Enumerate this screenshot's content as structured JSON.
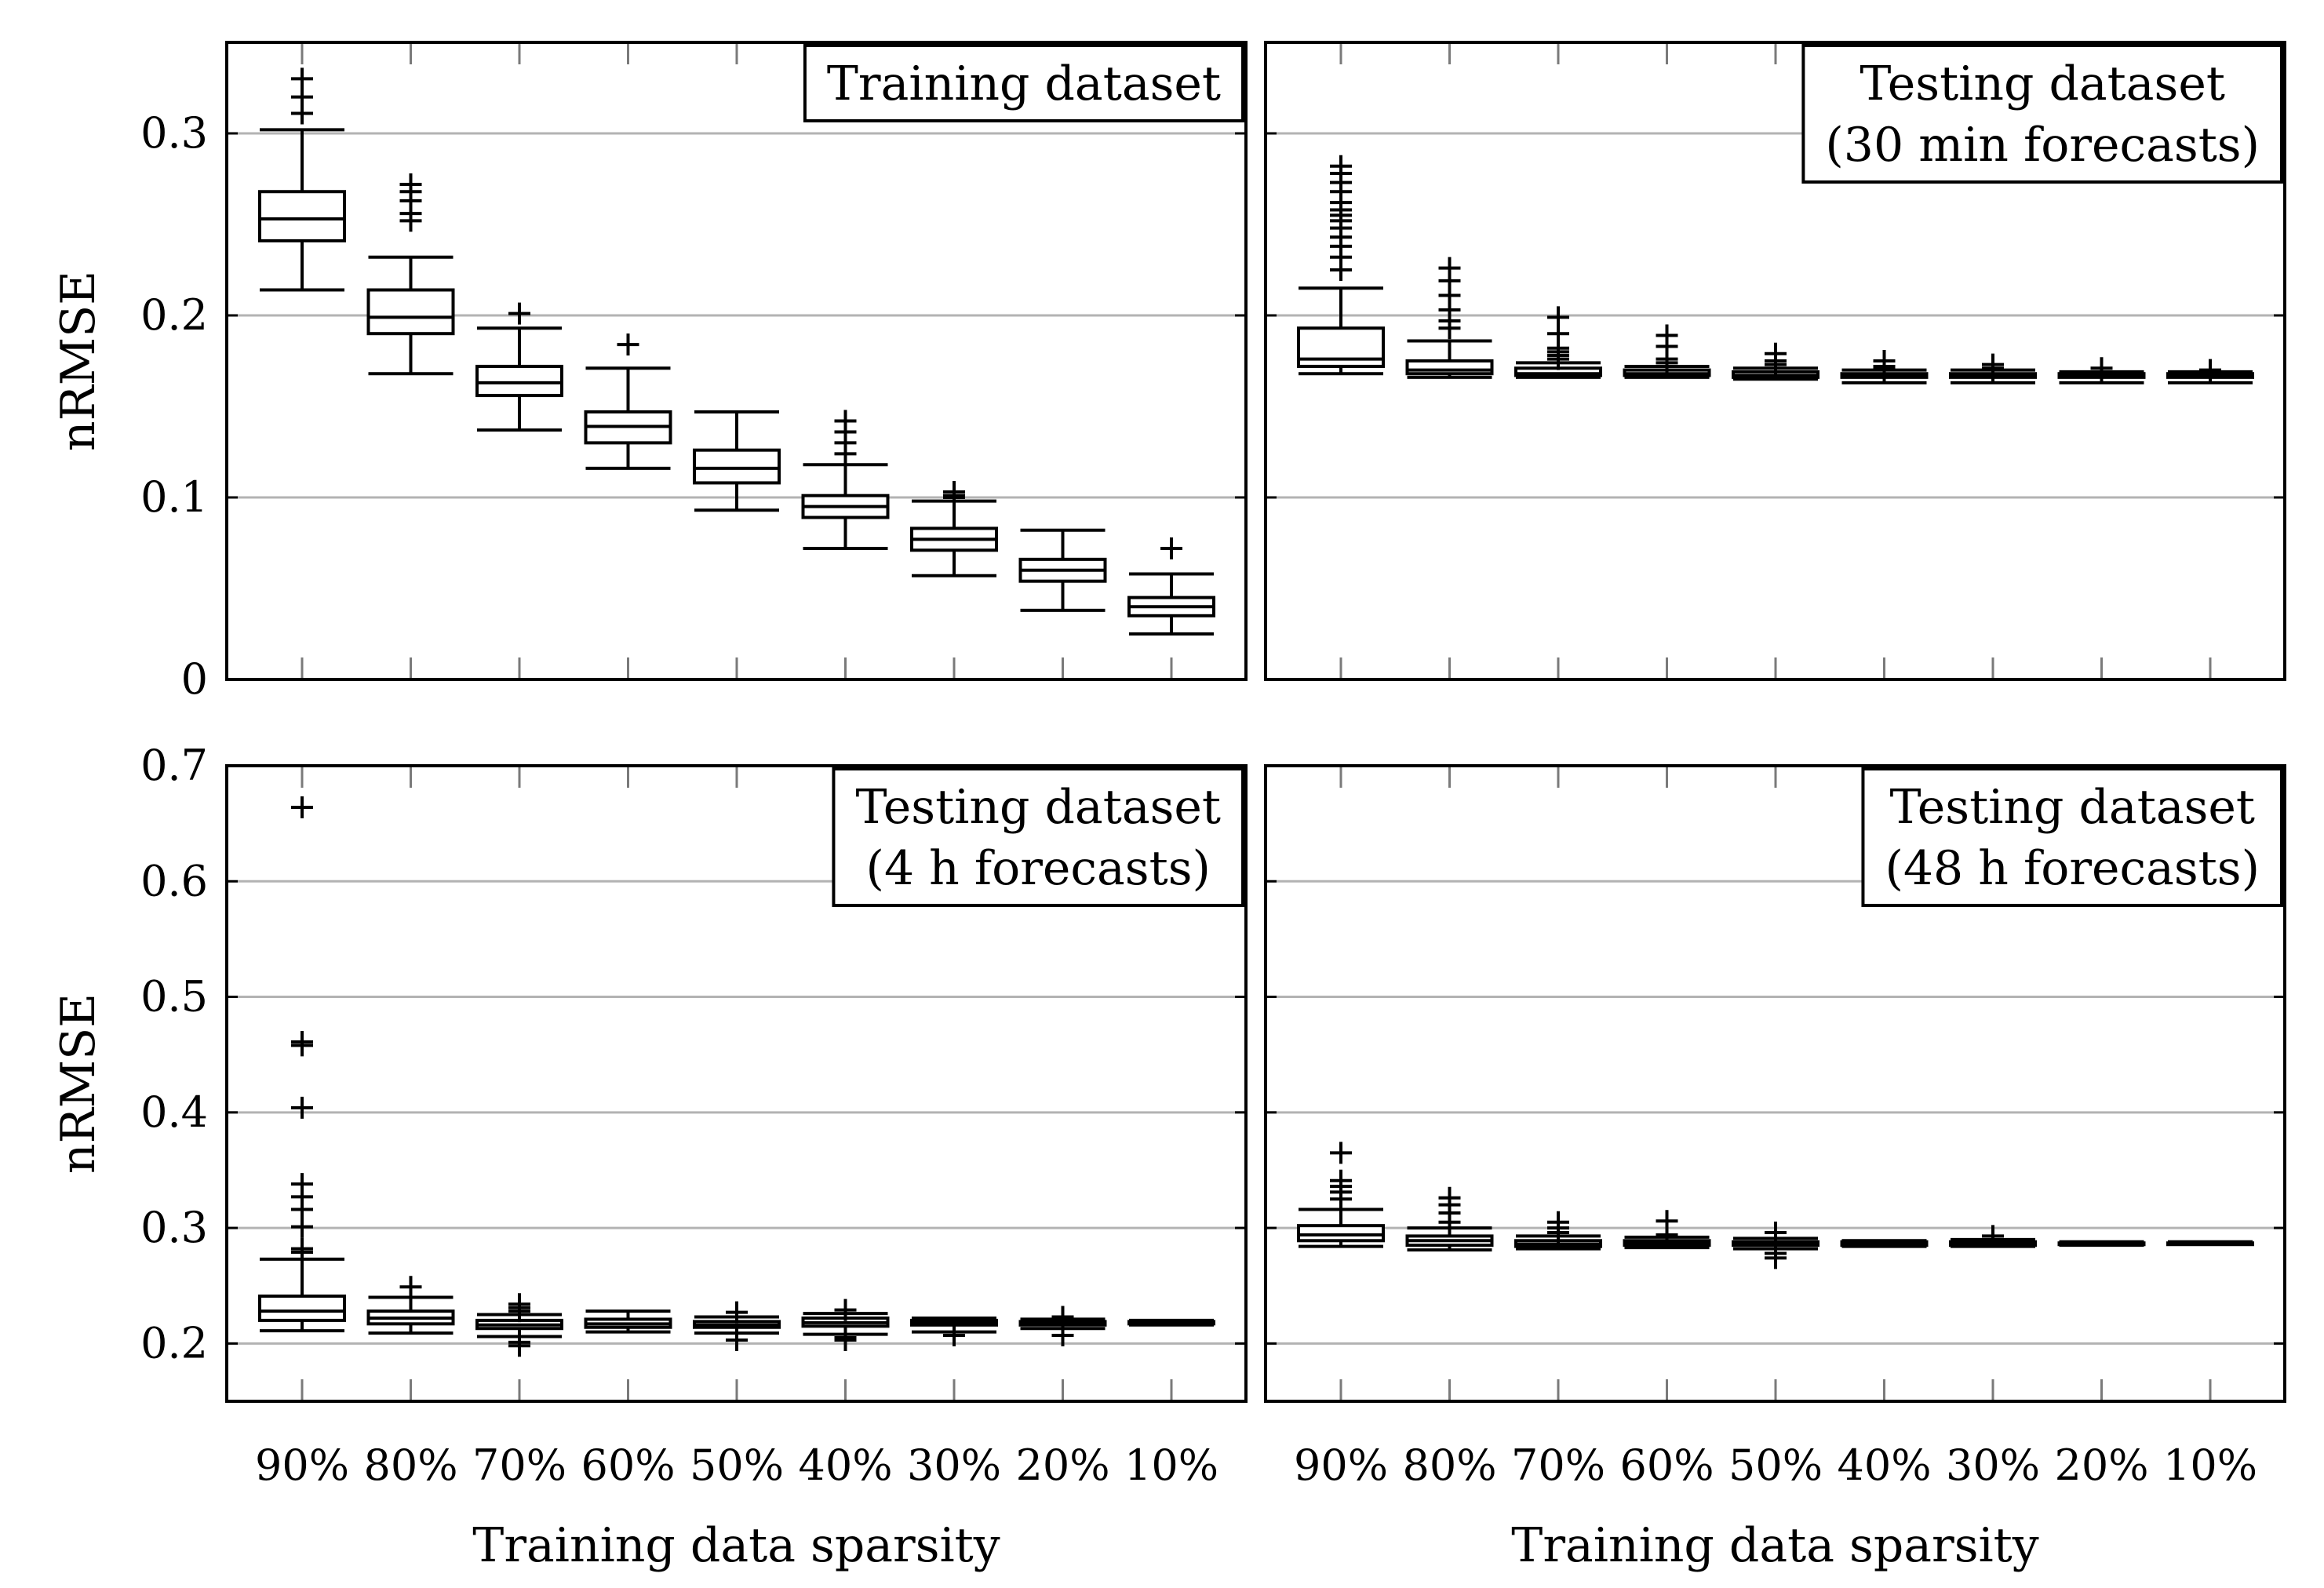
{
  "chart_data": [
    {
      "type": "boxplot",
      "panel": "top-left",
      "title": "Training dataset",
      "title_lines": [
        "Training dataset"
      ],
      "title_position": "top-right",
      "ylabel": "nRMSE",
      "xlabel": "",
      "ylim": [
        0,
        0.35
      ],
      "yticks": [
        0,
        0.1,
        0.2,
        0.3
      ],
      "ytick_labels": [
        "0",
        "0.1",
        "0.2",
        "0.3"
      ],
      "grid": true,
      "categories": [
        "90%",
        "80%",
        "70%",
        "60%",
        "50%",
        "40%",
        "30%",
        "20%",
        "10%"
      ],
      "boxes": [
        {
          "whislo": 0.214,
          "q1": 0.241,
          "med": 0.253,
          "q3": 0.268,
          "whishi": 0.302,
          "fliers": [
            0.311,
            0.32,
            0.33
          ]
        },
        {
          "whislo": 0.168,
          "q1": 0.19,
          "med": 0.199,
          "q3": 0.214,
          "whishi": 0.232,
          "fliers": [
            0.252,
            0.256,
            0.263,
            0.268,
            0.272
          ]
        },
        {
          "whislo": 0.137,
          "q1": 0.156,
          "med": 0.163,
          "q3": 0.172,
          "whishi": 0.193,
          "fliers": [
            0.201
          ]
        },
        {
          "whislo": 0.116,
          "q1": 0.13,
          "med": 0.139,
          "q3": 0.147,
          "whishi": 0.171,
          "fliers": [
            0.184
          ]
        },
        {
          "whislo": 0.093,
          "q1": 0.108,
          "med": 0.116,
          "q3": 0.126,
          "whishi": 0.147,
          "fliers": []
        },
        {
          "whislo": 0.072,
          "q1": 0.089,
          "med": 0.095,
          "q3": 0.101,
          "whishi": 0.118,
          "fliers": [
            0.124,
            0.13,
            0.136,
            0.142
          ]
        },
        {
          "whislo": 0.057,
          "q1": 0.071,
          "med": 0.077,
          "q3": 0.083,
          "whishi": 0.098,
          "fliers": [
            0.1,
            0.101,
            0.103
          ]
        },
        {
          "whislo": 0.038,
          "q1": 0.054,
          "med": 0.06,
          "q3": 0.066,
          "whishi": 0.082,
          "fliers": []
        },
        {
          "whislo": 0.025,
          "q1": 0.035,
          "med": 0.04,
          "q3": 0.045,
          "whishi": 0.058,
          "fliers": [
            0.072
          ]
        }
      ]
    },
    {
      "type": "boxplot",
      "panel": "top-right",
      "title": "Testing dataset (30 min forecasts)",
      "title_lines": [
        "Testing dataset",
        "(30 min forecasts)"
      ],
      "title_position": "top-right",
      "ylabel": "",
      "xlabel": "",
      "ylim": [
        0,
        0.35
      ],
      "yticks": [
        0,
        0.1,
        0.2,
        0.3
      ],
      "ytick_labels": [],
      "grid": true,
      "categories": [
        "90%",
        "80%",
        "70%",
        "60%",
        "50%",
        "40%",
        "30%",
        "20%",
        "10%"
      ],
      "boxes": [
        {
          "whislo": 0.168,
          "q1": 0.172,
          "med": 0.176,
          "q3": 0.193,
          "whishi": 0.215,
          "fliers": [
            0.225,
            0.232,
            0.238,
            0.243,
            0.248,
            0.252,
            0.255,
            0.258,
            0.262,
            0.268,
            0.273,
            0.278,
            0.282
          ]
        },
        {
          "whislo": 0.166,
          "q1": 0.168,
          "med": 0.17,
          "q3": 0.175,
          "whishi": 0.186,
          "fliers": [
            0.193,
            0.197,
            0.203,
            0.211,
            0.219,
            0.226
          ]
        },
        {
          "whislo": 0.166,
          "q1": 0.167,
          "med": 0.168,
          "q3": 0.171,
          "whishi": 0.174,
          "fliers": [
            0.176,
            0.178,
            0.18,
            0.182,
            0.19,
            0.199
          ]
        },
        {
          "whislo": 0.166,
          "q1": 0.167,
          "med": 0.168,
          "q3": 0.17,
          "whishi": 0.172,
          "fliers": [
            0.174,
            0.176,
            0.183,
            0.189
          ]
        },
        {
          "whislo": 0.165,
          "q1": 0.166,
          "med": 0.167,
          "q3": 0.169,
          "whishi": 0.171,
          "fliers": [
            0.173,
            0.175,
            0.179
          ]
        },
        {
          "whislo": 0.163,
          "q1": 0.166,
          "med": 0.167,
          "q3": 0.168,
          "whishi": 0.17,
          "fliers": [
            0.171,
            0.172,
            0.175
          ]
        },
        {
          "whislo": 0.163,
          "q1": 0.166,
          "med": 0.167,
          "q3": 0.168,
          "whishi": 0.17,
          "fliers": [
            0.171,
            0.173
          ]
        },
        {
          "whislo": 0.163,
          "q1": 0.166,
          "med": 0.167,
          "q3": 0.168,
          "whishi": 0.169,
          "fliers": [
            0.171
          ]
        },
        {
          "whislo": 0.163,
          "q1": 0.166,
          "med": 0.167,
          "q3": 0.168,
          "whishi": 0.169,
          "fliers": [
            0.17
          ]
        }
      ]
    },
    {
      "type": "boxplot",
      "panel": "bottom-left",
      "title": "Testing dataset (4 h forecasts)",
      "title_lines": [
        "Testing dataset",
        "(4 h forecasts)"
      ],
      "title_position": "top-right",
      "ylabel": "nRMSE",
      "xlabel": "Training data sparsity",
      "ylim": [
        0.15,
        0.7
      ],
      "yticks": [
        0.2,
        0.3,
        0.4,
        0.5,
        0.6,
        0.7
      ],
      "ytick_labels": [
        "0.2",
        "0.3",
        "0.4",
        "0.5",
        "0.6",
        "0.7"
      ],
      "grid": true,
      "categories": [
        "90%",
        "80%",
        "70%",
        "60%",
        "50%",
        "40%",
        "30%",
        "20%",
        "10%"
      ],
      "boxes": [
        {
          "whislo": 0.211,
          "q1": 0.22,
          "med": 0.228,
          "q3": 0.241,
          "whishi": 0.273,
          "fliers": [
            0.279,
            0.282,
            0.301,
            0.316,
            0.327,
            0.338,
            0.404,
            0.458,
            0.461,
            0.664
          ]
        },
        {
          "whislo": 0.209,
          "q1": 0.217,
          "med": 0.222,
          "q3": 0.228,
          "whishi": 0.24,
          "fliers": [
            0.249
          ]
        },
        {
          "whislo": 0.206,
          "q1": 0.213,
          "med": 0.216,
          "q3": 0.22,
          "whishi": 0.225,
          "fliers": [
            0.198,
            0.201,
            0.228,
            0.231,
            0.234
          ]
        },
        {
          "whislo": 0.21,
          "q1": 0.214,
          "med": 0.217,
          "q3": 0.221,
          "whishi": 0.228,
          "fliers": []
        },
        {
          "whislo": 0.209,
          "q1": 0.214,
          "med": 0.216,
          "q3": 0.219,
          "whishi": 0.223,
          "fliers": [
            0.203,
            0.227
          ]
        },
        {
          "whislo": 0.208,
          "q1": 0.215,
          "med": 0.218,
          "q3": 0.222,
          "whishi": 0.226,
          "fliers": [
            0.203,
            0.205,
            0.229
          ]
        },
        {
          "whislo": 0.21,
          "q1": 0.216,
          "med": 0.218,
          "q3": 0.22,
          "whishi": 0.222,
          "fliers": [
            0.207
          ]
        },
        {
          "whislo": 0.213,
          "q1": 0.216,
          "med": 0.218,
          "q3": 0.219,
          "whishi": 0.221,
          "fliers": [
            0.207,
            0.223
          ]
        },
        {
          "whislo": 0.216,
          "q1": 0.217,
          "med": 0.218,
          "q3": 0.219,
          "whishi": 0.22,
          "fliers": []
        }
      ]
    },
    {
      "type": "boxplot",
      "panel": "bottom-right",
      "title": "Testing dataset (48 h forecasts)",
      "title_lines": [
        "Testing dataset",
        "(48 h forecasts)"
      ],
      "title_position": "top-right",
      "ylabel": "",
      "xlabel": "Training data sparsity",
      "ylim": [
        0.15,
        0.7
      ],
      "yticks": [
        0.2,
        0.3,
        0.4,
        0.5,
        0.6,
        0.7
      ],
      "ytick_labels": [],
      "grid": true,
      "categories": [
        "90%",
        "80%",
        "70%",
        "60%",
        "50%",
        "40%",
        "30%",
        "20%",
        "10%"
      ],
      "boxes": [
        {
          "whislo": 0.284,
          "q1": 0.289,
          "med": 0.294,
          "q3": 0.302,
          "whishi": 0.316,
          "fliers": [
            0.325,
            0.331,
            0.336,
            0.341,
            0.365
          ]
        },
        {
          "whislo": 0.281,
          "q1": 0.285,
          "med": 0.289,
          "q3": 0.293,
          "whishi": 0.3,
          "fliers": [
            0.305,
            0.313,
            0.32,
            0.326
          ]
        },
        {
          "whislo": 0.282,
          "q1": 0.284,
          "med": 0.286,
          "q3": 0.289,
          "whishi": 0.293,
          "fliers": [
            0.296,
            0.3,
            0.305
          ]
        },
        {
          "whislo": 0.283,
          "q1": 0.285,
          "med": 0.287,
          "q3": 0.289,
          "whishi": 0.292,
          "fliers": [
            0.294,
            0.306
          ]
        },
        {
          "whislo": 0.282,
          "q1": 0.285,
          "med": 0.287,
          "q3": 0.288,
          "whishi": 0.291,
          "fliers": [
            0.274,
            0.278,
            0.296
          ]
        },
        {
          "whislo": 0.284,
          "q1": 0.285,
          "med": 0.287,
          "q3": 0.288,
          "whishi": 0.289,
          "fliers": []
        },
        {
          "whislo": 0.284,
          "q1": 0.285,
          "med": 0.287,
          "q3": 0.288,
          "whishi": 0.29,
          "fliers": [
            0.293
          ]
        },
        {
          "whislo": 0.285,
          "q1": 0.286,
          "med": 0.287,
          "q3": 0.287,
          "whishi": 0.288,
          "fliers": []
        },
        {
          "whislo": 0.286,
          "q1": 0.286,
          "med": 0.287,
          "q3": 0.287,
          "whishi": 0.288,
          "fliers": []
        }
      ]
    }
  ]
}
